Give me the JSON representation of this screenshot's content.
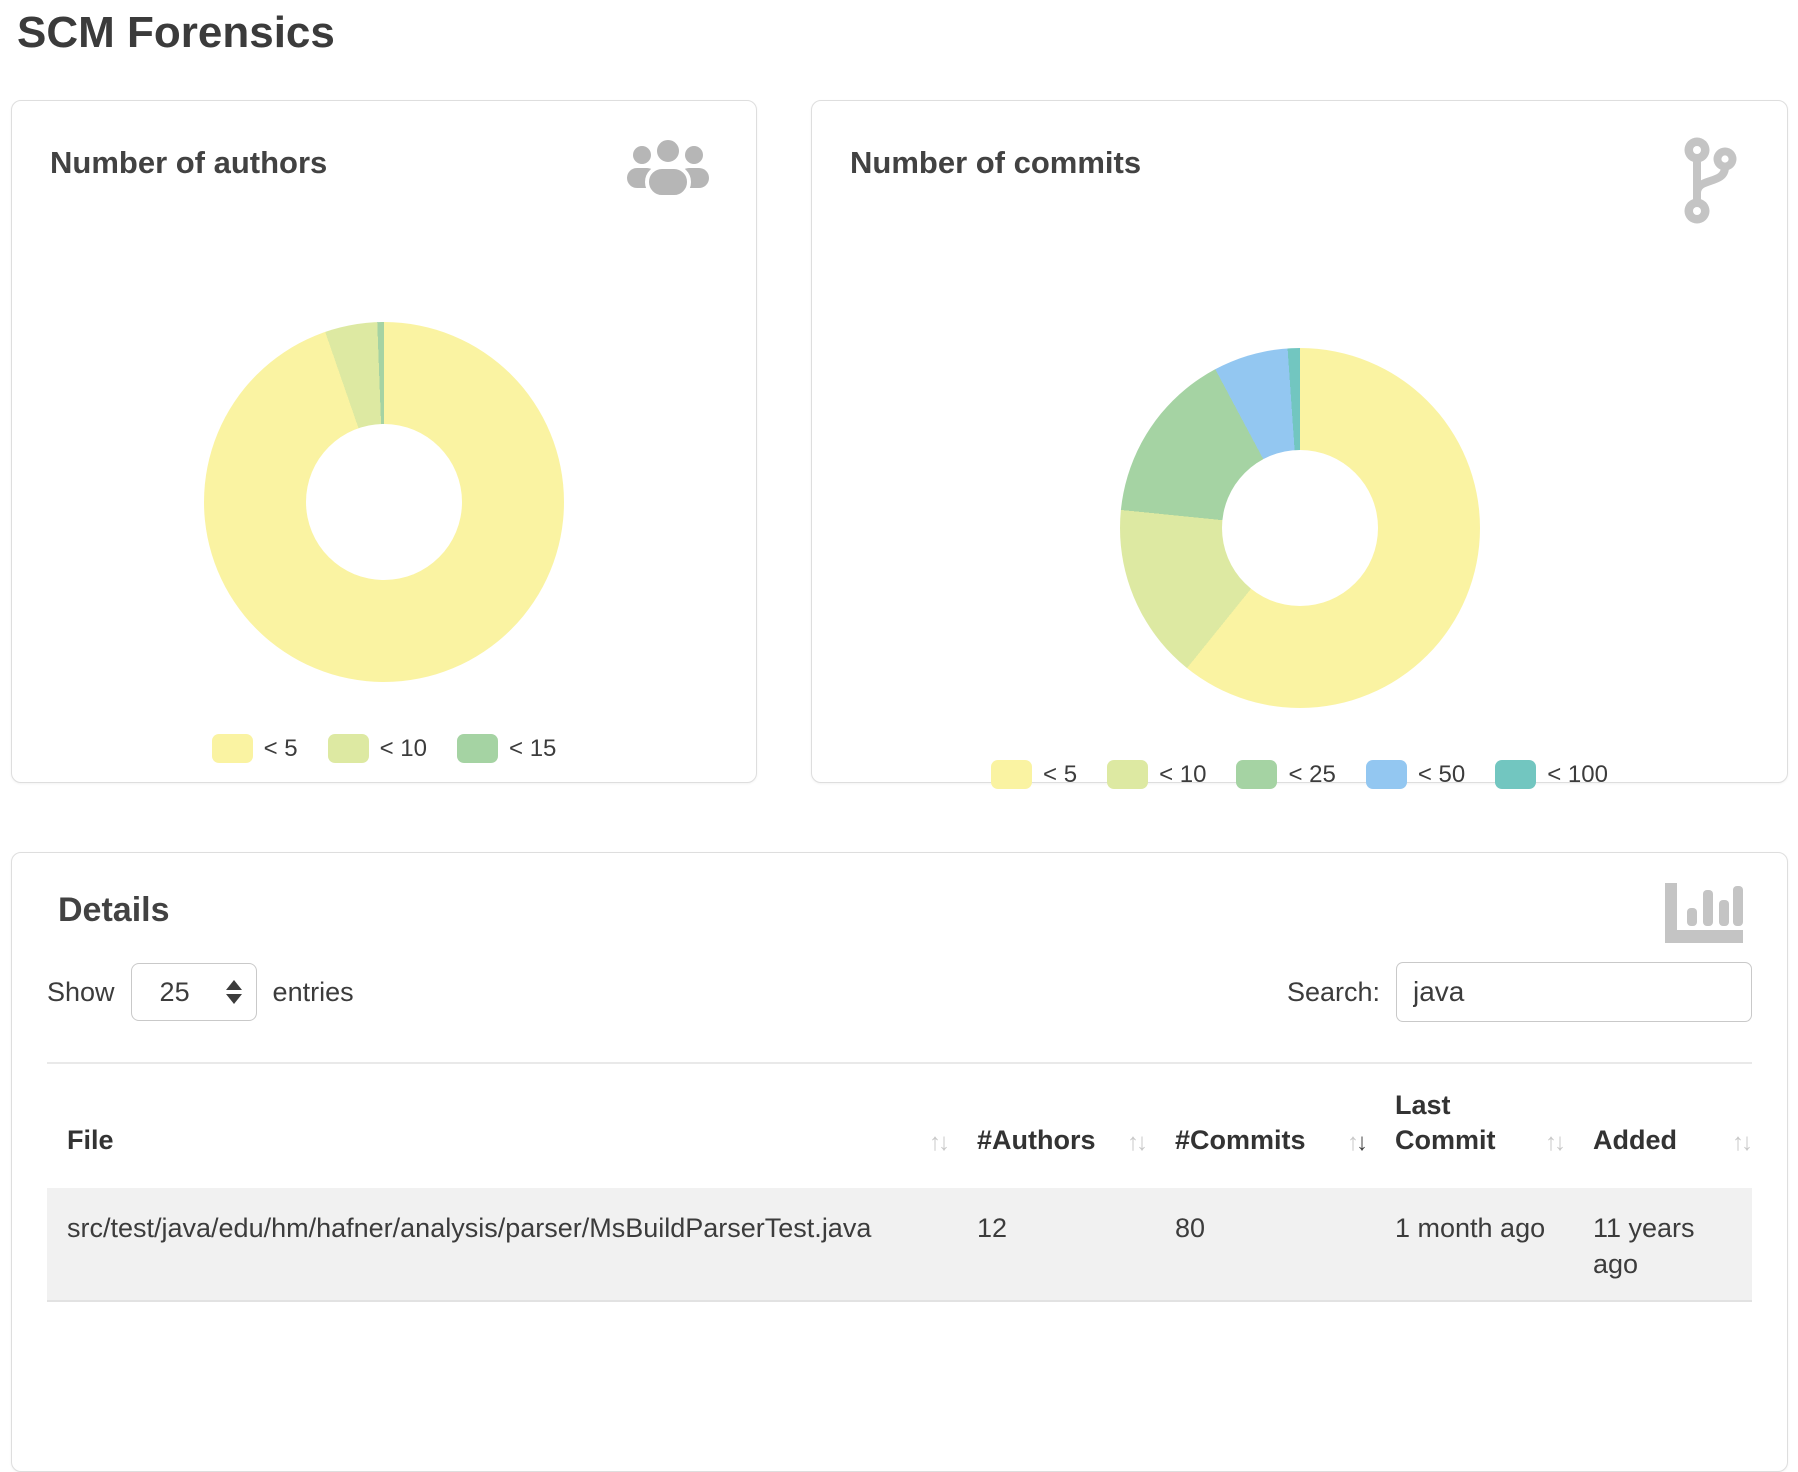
{
  "page": {
    "title": "SCM Forensics"
  },
  "icons": {
    "authors_card": "users-icon",
    "commits_card": "code-branch-icon",
    "details_card": "chart-bar-icon"
  },
  "chart_data": [
    {
      "type": "pie",
      "variant": "donut",
      "title": "Number of authors",
      "legend_position": "bottom",
      "slices": [
        {
          "label": "< 5",
          "pct": 94.7,
          "color": "#FAF3A2"
        },
        {
          "label": "< 10",
          "pct": 4.7,
          "color": "#DDE9A2"
        },
        {
          "label": "< 15",
          "pct": 0.6,
          "color": "#A5D3A3"
        }
      ]
    },
    {
      "type": "pie",
      "variant": "donut",
      "title": "Number of commits",
      "legend_position": "bottom",
      "slices": [
        {
          "label": "< 5",
          "pct": 60.8,
          "color": "#FAF3A2"
        },
        {
          "label": "< 10",
          "pct": 15.8,
          "color": "#DDE9A2"
        },
        {
          "label": "< 25",
          "pct": 15.6,
          "color": "#A5D3A3"
        },
        {
          "label": "< 50",
          "pct": 6.7,
          "color": "#93C7F1"
        },
        {
          "label": "< 100",
          "pct": 1.1,
          "color": "#72C6C0"
        }
      ]
    }
  ],
  "details": {
    "title": "Details",
    "show_label": "Show",
    "page_length": "25",
    "entries_label": "entries",
    "search_label": "Search:",
    "search_value": "java",
    "table": {
      "columns": [
        {
          "label": "File"
        },
        {
          "label": "#Authors"
        },
        {
          "label": "#Commits"
        },
        {
          "label": "Last Commit"
        },
        {
          "label": "Added"
        }
      ],
      "sort": {
        "column": "#Commits",
        "direction": "desc"
      },
      "rows": [
        {
          "file": "src/test/java/edu/hm/hafner/analysis/parser/MsBuildParserTest.java",
          "authors": "12",
          "commits": "80",
          "last_commit": "1 month ago",
          "added": "11 years ago"
        }
      ]
    }
  }
}
